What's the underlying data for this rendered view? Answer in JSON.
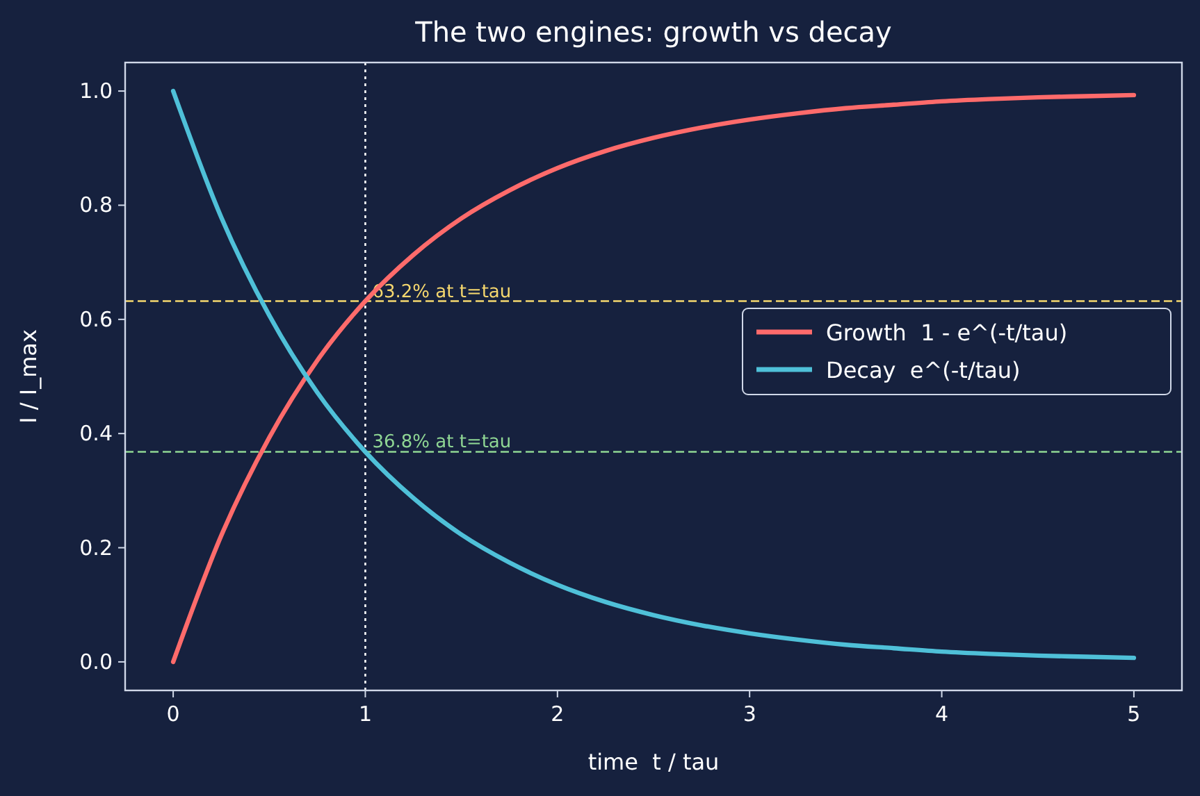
{
  "chart_data": {
    "type": "line",
    "title": "The two engines: growth vs decay",
    "xlabel": "time  t / tau",
    "ylabel": "I / I_max",
    "x": [
      0,
      0.25,
      0.5,
      0.75,
      1,
      1.25,
      1.5,
      1.75,
      2,
      2.25,
      2.5,
      2.75,
      3,
      3.25,
      3.5,
      3.75,
      4,
      4.25,
      4.5,
      4.75,
      5
    ],
    "series": [
      {
        "name": "Growth  1 - e^(-t/tau)",
        "color": "#ff6b6b",
        "values": [
          0,
          0.221,
          0.393,
          0.528,
          0.632,
          0.713,
          0.777,
          0.826,
          0.865,
          0.895,
          0.918,
          0.936,
          0.95,
          0.961,
          0.97,
          0.976,
          0.982,
          0.986,
          0.989,
          0.991,
          0.993
        ]
      },
      {
        "name": "Decay  e^(-t/tau)",
        "color": "#4fc0d8",
        "values": [
          1,
          0.779,
          0.607,
          0.472,
          0.368,
          0.287,
          0.223,
          0.174,
          0.135,
          0.105,
          0.082,
          0.064,
          0.05,
          0.039,
          0.03,
          0.024,
          0.018,
          0.014,
          0.011,
          0.009,
          0.007
        ]
      }
    ],
    "xlim": [
      -0.25,
      5.25
    ],
    "ylim": [
      -0.05,
      1.05
    ],
    "xticks": [
      0,
      1,
      2,
      3,
      4,
      5
    ],
    "yticks": [
      {
        "value": 0,
        "label": "0.0"
      },
      0.2,
      0.4,
      0.6,
      0.8,
      {
        "value": 1,
        "label": "1.0"
      }
    ],
    "ref_lines": [
      {
        "axis": "y",
        "value": 0.632,
        "label": "63.2% at t=tau",
        "color": "#f5d76e",
        "line_style": "dashed"
      },
      {
        "axis": "y",
        "value": 0.368,
        "label": "36.8% at t=tau",
        "color": "#8fd694",
        "line_style": "dashed"
      },
      {
        "axis": "x",
        "value": 1,
        "color": "#ffffff",
        "line_style": "dotted"
      }
    ],
    "grid": false,
    "legend": "right",
    "line_style": "solid",
    "marker": "none"
  }
}
